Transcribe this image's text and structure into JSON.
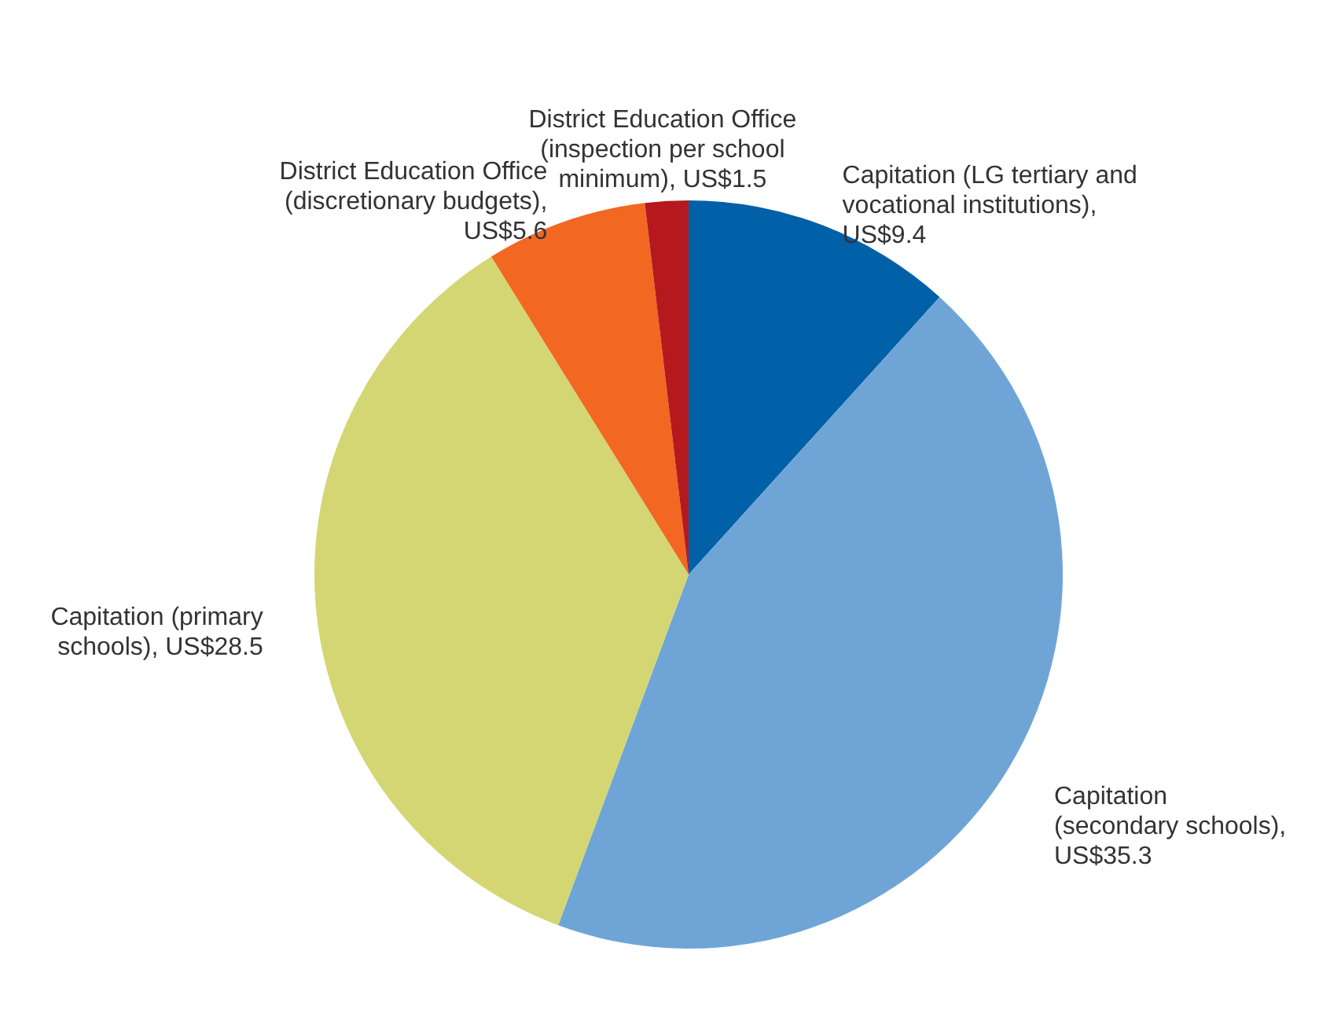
{
  "chart_data": {
    "type": "pie",
    "categories": [
      "Capitation (LG tertiary and vocational institutions), US$9.4",
      "Capitation (secondary schools), US$35.3",
      "Capitation (primary schools), US$28.5",
      "District Education Office (discretionary budgets), US$5.6",
      "District Education Office (inspection per school minimum), US$1.5"
    ],
    "values": [
      9.4,
      35.3,
      28.5,
      5.6,
      1.5
    ],
    "colors": [
      "#0060a8",
      "#6fa5d6",
      "#d4d673",
      "#f26722",
      "#b5191e"
    ],
    "legend": false
  }
}
